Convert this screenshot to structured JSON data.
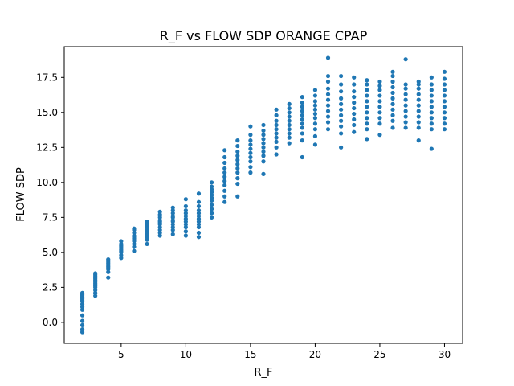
{
  "chart_data": {
    "type": "scatter",
    "title": "R_F vs FLOW SDP ORANGE CPAP",
    "xlabel": "R_F",
    "ylabel": "FLOW SDP",
    "xlim": [
      0.6,
      31.4
    ],
    "ylim": [
      -1.5,
      19.7
    ],
    "grid": false,
    "marker_color": "#1f77b4",
    "x_ticks": [
      5,
      10,
      15,
      20,
      25,
      30
    ],
    "x_tick_labels": [
      "5",
      "10",
      "15",
      "20",
      "25",
      "30"
    ],
    "y_ticks": [
      0.0,
      2.5,
      5.0,
      7.5,
      10.0,
      12.5,
      15.0,
      17.5
    ],
    "y_tick_labels": [
      "0.0",
      "2.5",
      "5.0",
      "7.5",
      "10.0",
      "12.5",
      "15.0",
      "17.5"
    ],
    "series": [
      {
        "points": [
          [
            2,
            -0.7
          ],
          [
            2,
            -0.5
          ],
          [
            2,
            -0.2
          ],
          [
            2,
            0.1
          ],
          [
            2,
            0.5
          ],
          [
            2,
            0.9
          ],
          [
            2,
            1.1
          ],
          [
            2,
            1.3
          ],
          [
            2,
            1.5
          ],
          [
            2,
            1.6
          ],
          [
            2,
            1.7
          ],
          [
            2,
            1.8
          ],
          [
            2,
            1.9
          ],
          [
            2,
            2.0
          ],
          [
            2,
            2.1
          ],
          [
            3,
            1.9
          ],
          [
            3,
            2.1
          ],
          [
            3,
            2.3
          ],
          [
            3,
            2.5
          ],
          [
            3,
            2.6
          ],
          [
            3,
            2.7
          ],
          [
            3,
            2.8
          ],
          [
            3,
            2.9
          ],
          [
            3,
            3.0
          ],
          [
            3,
            3.1
          ],
          [
            3,
            3.2
          ],
          [
            3,
            3.3
          ],
          [
            3,
            3.4
          ],
          [
            3,
            3.5
          ],
          [
            4,
            3.2
          ],
          [
            4,
            3.6
          ],
          [
            4,
            3.8
          ],
          [
            4,
            3.9
          ],
          [
            4,
            4.0
          ],
          [
            4,
            4.1
          ],
          [
            4,
            4.2
          ],
          [
            4,
            4.3
          ],
          [
            4,
            4.4
          ],
          [
            4,
            4.5
          ],
          [
            5,
            4.6
          ],
          [
            5,
            4.8
          ],
          [
            5,
            5.0
          ],
          [
            5,
            5.1
          ],
          [
            5,
            5.2
          ],
          [
            5,
            5.3
          ],
          [
            5,
            5.4
          ],
          [
            5,
            5.5
          ],
          [
            5,
            5.6
          ],
          [
            5,
            5.8
          ],
          [
            6,
            5.1
          ],
          [
            6,
            5.4
          ],
          [
            6,
            5.6
          ],
          [
            6,
            5.8
          ],
          [
            6,
            5.9
          ],
          [
            6,
            6.0
          ],
          [
            6,
            6.1
          ],
          [
            6,
            6.2
          ],
          [
            6,
            6.4
          ],
          [
            6,
            6.6
          ],
          [
            6,
            6.7
          ],
          [
            7,
            5.6
          ],
          [
            7,
            5.9
          ],
          [
            7,
            6.1
          ],
          [
            7,
            6.3
          ],
          [
            7,
            6.5
          ],
          [
            7,
            6.6
          ],
          [
            7,
            6.8
          ],
          [
            7,
            6.9
          ],
          [
            7,
            7.0
          ],
          [
            7,
            7.1
          ],
          [
            7,
            7.2
          ],
          [
            8,
            6.2
          ],
          [
            8,
            6.4
          ],
          [
            8,
            6.6
          ],
          [
            8,
            6.8
          ],
          [
            8,
            7.0
          ],
          [
            8,
            7.1
          ],
          [
            8,
            7.2
          ],
          [
            8,
            7.3
          ],
          [
            8,
            7.5
          ],
          [
            8,
            7.7
          ],
          [
            8,
            7.9
          ],
          [
            9,
            6.3
          ],
          [
            9,
            6.6
          ],
          [
            9,
            6.8
          ],
          [
            9,
            7.0
          ],
          [
            9,
            7.2
          ],
          [
            9,
            7.3
          ],
          [
            9,
            7.5
          ],
          [
            9,
            7.6
          ],
          [
            9,
            7.8
          ],
          [
            9,
            8.0
          ],
          [
            9,
            8.2
          ],
          [
            10,
            6.2
          ],
          [
            10,
            6.5
          ],
          [
            10,
            6.8
          ],
          [
            10,
            7.0
          ],
          [
            10,
            7.2
          ],
          [
            10,
            7.4
          ],
          [
            10,
            7.6
          ],
          [
            10,
            7.8
          ],
          [
            10,
            8.0
          ],
          [
            10,
            8.3
          ],
          [
            10,
            8.8
          ],
          [
            11,
            6.1
          ],
          [
            11,
            6.4
          ],
          [
            11,
            6.8
          ],
          [
            11,
            7.0
          ],
          [
            11,
            7.2
          ],
          [
            11,
            7.4
          ],
          [
            11,
            7.6
          ],
          [
            11,
            7.8
          ],
          [
            11,
            8.0
          ],
          [
            11,
            8.3
          ],
          [
            11,
            8.6
          ],
          [
            11,
            9.2
          ],
          [
            12,
            7.5
          ],
          [
            12,
            7.8
          ],
          [
            12,
            8.1
          ],
          [
            12,
            8.4
          ],
          [
            12,
            8.7
          ],
          [
            12,
            8.9
          ],
          [
            12,
            9.1
          ],
          [
            12,
            9.3
          ],
          [
            12,
            9.5
          ],
          [
            12,
            9.7
          ],
          [
            12,
            10.0
          ],
          [
            13,
            8.6
          ],
          [
            13,
            9.0
          ],
          [
            13,
            9.4
          ],
          [
            13,
            9.8
          ],
          [
            13,
            10.1
          ],
          [
            13,
            10.4
          ],
          [
            13,
            10.7
          ],
          [
            13,
            11.0
          ],
          [
            13,
            11.4
          ],
          [
            13,
            11.8
          ],
          [
            13,
            12.3
          ],
          [
            14,
            9.0
          ],
          [
            14,
            9.9
          ],
          [
            14,
            10.3
          ],
          [
            14,
            10.7
          ],
          [
            14,
            11.0
          ],
          [
            14,
            11.3
          ],
          [
            14,
            11.6
          ],
          [
            14,
            11.9
          ],
          [
            14,
            12.2
          ],
          [
            14,
            12.6
          ],
          [
            14,
            13.0
          ],
          [
            15,
            10.7
          ],
          [
            15,
            11.1
          ],
          [
            15,
            11.5
          ],
          [
            15,
            11.8
          ],
          [
            15,
            12.1
          ],
          [
            15,
            12.4
          ],
          [
            15,
            12.7
          ],
          [
            15,
            13.0
          ],
          [
            15,
            13.4
          ],
          [
            15,
            14.0
          ],
          [
            16,
            10.6
          ],
          [
            16,
            11.5
          ],
          [
            16,
            11.9
          ],
          [
            16,
            12.2
          ],
          [
            16,
            12.5
          ],
          [
            16,
            12.8
          ],
          [
            16,
            13.1
          ],
          [
            16,
            13.4
          ],
          [
            16,
            13.7
          ],
          [
            16,
            14.1
          ],
          [
            17,
            12.0
          ],
          [
            17,
            12.5
          ],
          [
            17,
            12.9
          ],
          [
            17,
            13.2
          ],
          [
            17,
            13.5
          ],
          [
            17,
            13.8
          ],
          [
            17,
            14.1
          ],
          [
            17,
            14.4
          ],
          [
            17,
            14.8
          ],
          [
            17,
            15.2
          ],
          [
            18,
            12.8
          ],
          [
            18,
            13.2
          ],
          [
            18,
            13.5
          ],
          [
            18,
            13.8
          ],
          [
            18,
            14.1
          ],
          [
            18,
            14.4
          ],
          [
            18,
            14.7
          ],
          [
            18,
            15.0
          ],
          [
            18,
            15.3
          ],
          [
            18,
            15.6
          ],
          [
            19,
            11.8
          ],
          [
            19,
            13.0
          ],
          [
            19,
            13.5
          ],
          [
            19,
            13.9
          ],
          [
            19,
            14.2
          ],
          [
            19,
            14.5
          ],
          [
            19,
            14.8
          ],
          [
            19,
            15.1
          ],
          [
            19,
            15.4
          ],
          [
            19,
            15.7
          ],
          [
            19,
            16.1
          ],
          [
            20,
            12.7
          ],
          [
            20,
            13.3
          ],
          [
            20,
            13.8
          ],
          [
            20,
            14.2
          ],
          [
            20,
            14.6
          ],
          [
            20,
            14.9
          ],
          [
            20,
            15.2
          ],
          [
            20,
            15.5
          ],
          [
            20,
            15.8
          ],
          [
            20,
            16.2
          ],
          [
            20,
            16.6
          ],
          [
            21,
            13.8
          ],
          [
            21,
            14.3
          ],
          [
            21,
            14.7
          ],
          [
            21,
            15.1
          ],
          [
            21,
            15.5
          ],
          [
            21,
            15.9
          ],
          [
            21,
            16.3
          ],
          [
            21,
            16.7
          ],
          [
            21,
            17.2
          ],
          [
            21,
            17.6
          ],
          [
            21,
            18.9
          ],
          [
            22,
            12.5
          ],
          [
            22,
            13.5
          ],
          [
            22,
            14.0
          ],
          [
            22,
            14.4
          ],
          [
            22,
            14.8
          ],
          [
            22,
            15.2
          ],
          [
            22,
            15.6
          ],
          [
            22,
            16.0
          ],
          [
            22,
            16.5
          ],
          [
            22,
            17.0
          ],
          [
            22,
            17.6
          ],
          [
            23,
            13.6
          ],
          [
            23,
            14.1
          ],
          [
            23,
            14.5
          ],
          [
            23,
            14.9
          ],
          [
            23,
            15.3
          ],
          [
            23,
            15.7
          ],
          [
            23,
            16.1
          ],
          [
            23,
            16.5
          ],
          [
            23,
            17.0
          ],
          [
            23,
            17.5
          ],
          [
            24,
            13.1
          ],
          [
            24,
            13.8
          ],
          [
            24,
            14.2
          ],
          [
            24,
            14.6
          ],
          [
            24,
            15.0
          ],
          [
            24,
            15.4
          ],
          [
            24,
            15.8
          ],
          [
            24,
            16.2
          ],
          [
            24,
            16.6
          ],
          [
            24,
            17.0
          ],
          [
            24,
            17.3
          ],
          [
            25,
            13.4
          ],
          [
            25,
            14.2
          ],
          [
            25,
            14.6
          ],
          [
            25,
            15.0
          ],
          [
            25,
            15.4
          ],
          [
            25,
            15.8
          ],
          [
            25,
            16.2
          ],
          [
            25,
            16.6
          ],
          [
            25,
            16.9
          ],
          [
            25,
            17.2
          ],
          [
            26,
            13.9
          ],
          [
            26,
            14.4
          ],
          [
            26,
            14.8
          ],
          [
            26,
            15.2
          ],
          [
            26,
            15.6
          ],
          [
            26,
            16.0
          ],
          [
            26,
            16.4
          ],
          [
            26,
            16.8
          ],
          [
            26,
            17.2
          ],
          [
            26,
            17.6
          ],
          [
            26,
            17.9
          ],
          [
            27,
            13.9
          ],
          [
            27,
            14.3
          ],
          [
            27,
            14.7
          ],
          [
            27,
            15.1
          ],
          [
            27,
            15.5
          ],
          [
            27,
            15.9
          ],
          [
            27,
            16.3
          ],
          [
            27,
            16.7
          ],
          [
            27,
            17.0
          ],
          [
            27,
            18.8
          ],
          [
            28,
            13.0
          ],
          [
            28,
            13.9
          ],
          [
            28,
            14.3
          ],
          [
            28,
            14.7
          ],
          [
            28,
            15.1
          ],
          [
            28,
            15.5
          ],
          [
            28,
            15.9
          ],
          [
            28,
            16.3
          ],
          [
            28,
            16.7
          ],
          [
            28,
            17.0
          ],
          [
            28,
            17.2
          ],
          [
            29,
            12.4
          ],
          [
            29,
            13.8
          ],
          [
            29,
            14.2
          ],
          [
            29,
            14.6
          ],
          [
            29,
            15.0
          ],
          [
            29,
            15.4
          ],
          [
            29,
            15.8
          ],
          [
            29,
            16.2
          ],
          [
            29,
            16.6
          ],
          [
            29,
            17.0
          ],
          [
            29,
            17.5
          ],
          [
            30,
            13.8
          ],
          [
            30,
            14.2
          ],
          [
            30,
            14.6
          ],
          [
            30,
            15.0
          ],
          [
            30,
            15.4
          ],
          [
            30,
            15.8
          ],
          [
            30,
            16.2
          ],
          [
            30,
            16.6
          ],
          [
            30,
            17.0
          ],
          [
            30,
            17.4
          ],
          [
            30,
            17.9
          ]
        ]
      }
    ]
  }
}
